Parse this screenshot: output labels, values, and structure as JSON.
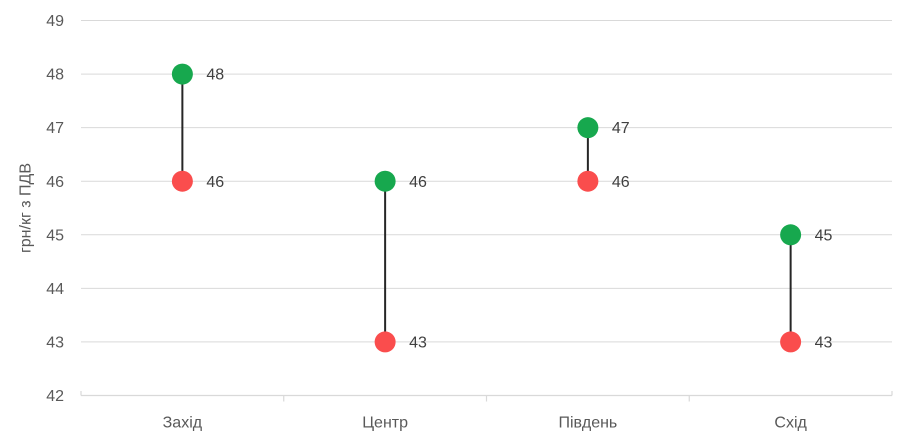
{
  "chart_data": {
    "type": "dumbbell",
    "title": "",
    "ylabel": "грн/кг з ПДВ",
    "xlabel": "",
    "categories": [
      "Захід",
      "Центр",
      "Південь",
      "Схід"
    ],
    "series": [
      {
        "name": "green",
        "color": "#17A84E",
        "values": [
          48,
          46,
          47,
          45
        ]
      },
      {
        "name": "red",
        "color": "#FA4D4D",
        "values": [
          46,
          43,
          46,
          43
        ]
      }
    ],
    "data_labels": true,
    "ylim": [
      42,
      49
    ],
    "yticks": [
      42,
      43,
      44,
      45,
      46,
      47,
      48,
      49
    ],
    "grid": true,
    "legend": false,
    "colors": {
      "grid": "#D9D9D9",
      "axis": "#D9D9D9",
      "axis_text": "#595959",
      "data_label": "#404040",
      "connector": "#262626",
      "background": "#FFFFFF"
    }
  }
}
